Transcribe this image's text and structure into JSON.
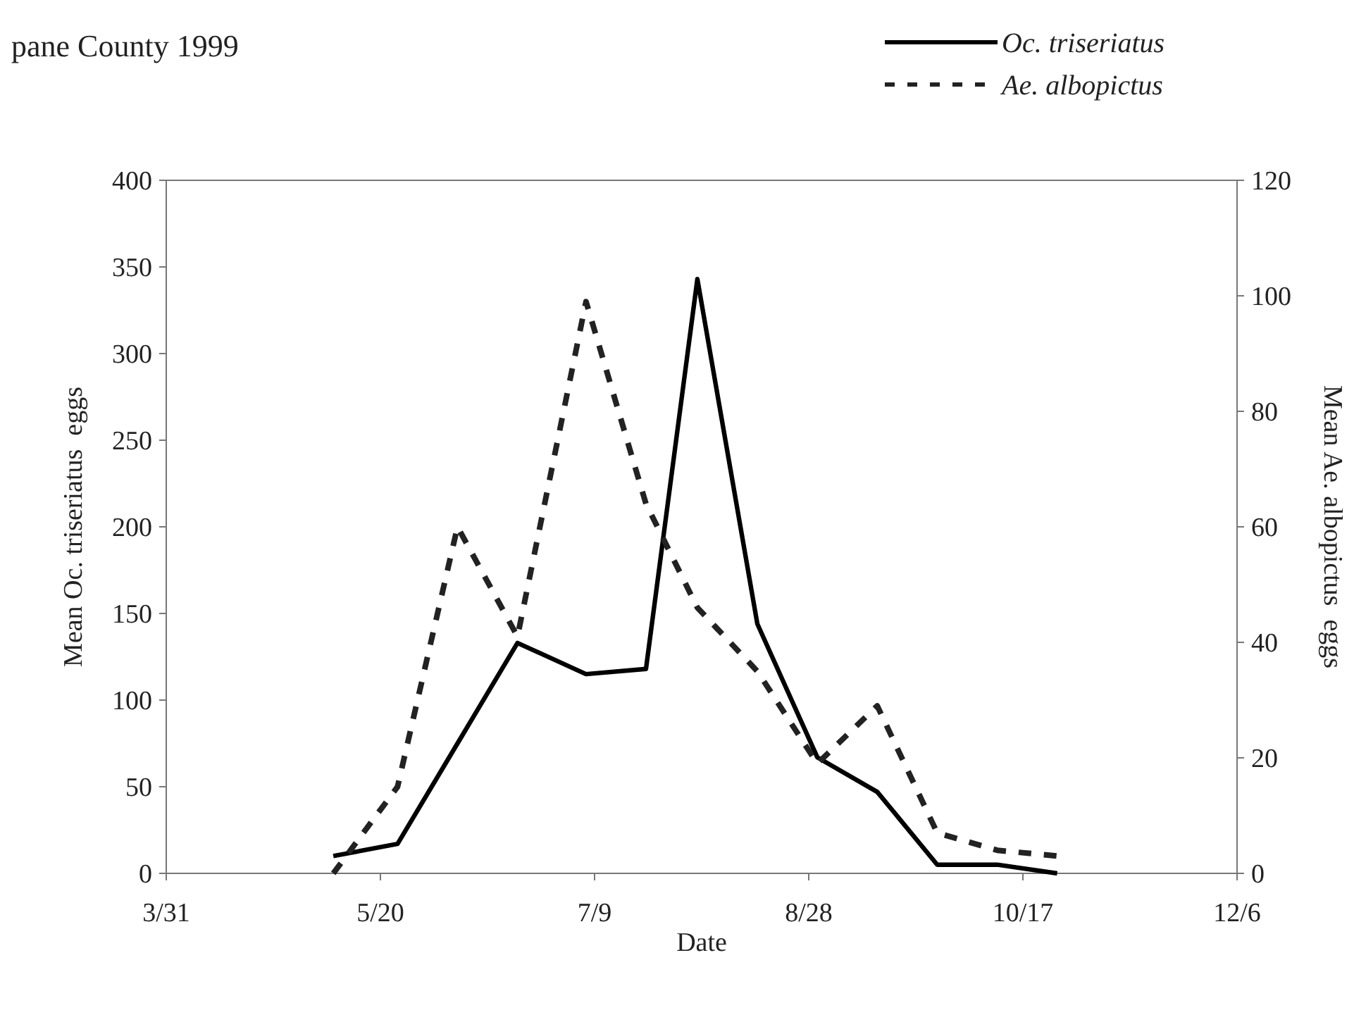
{
  "chart_data": {
    "type": "line",
    "title": "pane County 1999",
    "xlabel": "Date",
    "ylabel": "Mean Oc. triseriatus  eggs",
    "y2label": "Mean Ae. albopictus  eggs",
    "x": [
      "1999-05-09",
      "1999-05-24",
      "1999-06-07",
      "1999-06-21",
      "1999-07-07",
      "1999-07-21",
      "1999-08-02",
      "1999-08-16",
      "1999-08-30",
      "1999-09-13",
      "1999-09-27",
      "1999-10-11",
      "1999-10-25"
    ],
    "series": [
      {
        "name": "Oc. triseriatus",
        "color": "#000000",
        "line_style": "solid",
        "values": [
          10,
          17,
          75,
          133,
          115,
          118,
          343,
          144,
          67,
          47,
          5,
          5,
          0
        ]
      },
      {
        "name": "Ae. albopictus",
        "color": "#222222",
        "line_style": "dashed",
        "axis": "y2",
        "values": [
          0,
          15,
          60,
          41,
          99,
          64,
          46,
          35,
          19,
          29,
          7,
          4,
          3
        ]
      }
    ],
    "xlim": [
      "1999-03-31",
      "1999-12-06"
    ],
    "xticks": [
      {
        "value": "1999-03-31",
        "label": "3/31"
      },
      {
        "value": "1999-05-20",
        "label": "5/20"
      },
      {
        "value": "1999-07-09",
        "label": "7/9"
      },
      {
        "value": "1999-08-28",
        "label": "8/28"
      },
      {
        "value": "1999-10-17",
        "label": "10/17"
      },
      {
        "value": "1999-12-06",
        "label": "12/6"
      }
    ],
    "ylim": [
      0,
      400
    ],
    "yticks": [
      0,
      50,
      100,
      150,
      200,
      250,
      300,
      350,
      400
    ],
    "y2lim": [
      0,
      120
    ],
    "y2ticks": [
      0,
      20,
      40,
      60,
      80,
      100,
      120
    ],
    "grid": false,
    "legend": "top right",
    "marker": "none"
  }
}
